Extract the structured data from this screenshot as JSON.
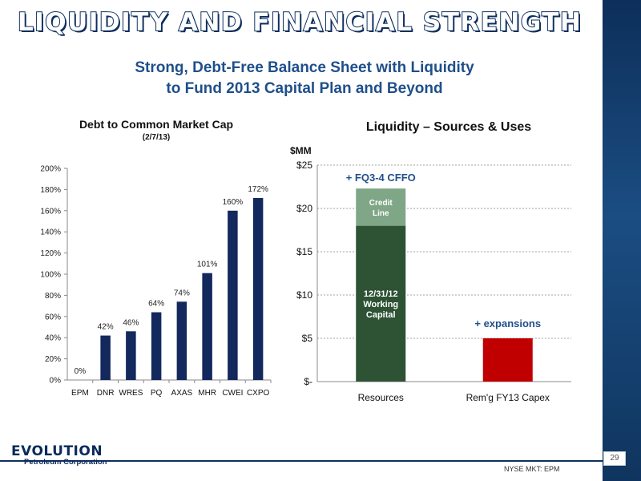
{
  "slide": {
    "title": "LIQUIDITY AND FINANCIAL STRENGTH",
    "subtitle_line1": "Strong, Debt-Free Balance Sheet with Liquidity",
    "subtitle_line2": "to Fund 2013 Capital Plan and Beyond",
    "logo_main": "EVOLUTION",
    "logo_sub": "Petroleum Corporation",
    "ticker": "NYSE MKT: EPM",
    "page_number": "29",
    "colors": {
      "title_outline": "#0d2e5e",
      "subtitle": "#1f4f8a",
      "bar_navy": "#13285c"
    }
  },
  "chart_data": [
    {
      "type": "bar",
      "title": "Debt to Common Market Cap",
      "subtitle": "(2/7/13)",
      "categories": [
        "EPM",
        "DNR",
        "WRES",
        "PQ",
        "AXAS",
        "MHR",
        "CWEI",
        "CXPO"
      ],
      "values": [
        0,
        42,
        46,
        64,
        74,
        101,
        160,
        172
      ],
      "data_labels": [
        "0%",
        "42%",
        "46%",
        "64%",
        "74%",
        "101%",
        "160%",
        "172%"
      ],
      "ylim": [
        0,
        200
      ],
      "yticks": [
        "0%",
        "20%",
        "40%",
        "60%",
        "80%",
        "100%",
        "120%",
        "140%",
        "160%",
        "180%",
        "200%"
      ],
      "grid": false,
      "color": "#13285c"
    },
    {
      "type": "bar",
      "stacked": true,
      "title": "Liquidity – Sources & Uses",
      "ylabel": "$MM",
      "categories": [
        "Resources",
        "Rem'g FY13 Capex"
      ],
      "ylim": [
        0,
        25
      ],
      "yticks": [
        "$-",
        "$5",
        "$10",
        "$15",
        "$20",
        "$25"
      ],
      "grid": true,
      "series": [
        {
          "name": "12/31/12 Working Capital",
          "values": [
            18,
            0
          ],
          "color": "#2d5234"
        },
        {
          "name": "Credit Line",
          "values": [
            4.3,
            0
          ],
          "color": "#7fa787"
        },
        {
          "name": "Capex",
          "values": [
            0,
            5
          ],
          "color": "#c00000"
        }
      ],
      "segment_labels": {
        "working_capital": [
          "12/31/12",
          "Working",
          "Capital"
        ],
        "credit_line": [
          "Credit",
          "Line"
        ]
      },
      "annotations": [
        "+ FQ3-4 CFFO",
        "+ expansions"
      ]
    }
  ]
}
